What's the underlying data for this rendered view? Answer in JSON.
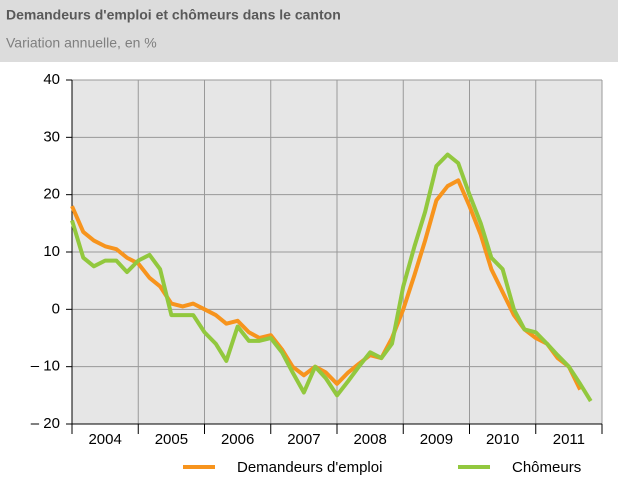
{
  "chart_data": {
    "type": "line",
    "title": "Demandeurs d'emploi et chômeurs dans le canton",
    "subtitle": "Variation annuelle, en %",
    "xlim": [
      2004,
      2012
    ],
    "xticks": [
      {
        "value": 2004.5,
        "label": "2004"
      },
      {
        "value": 2005.5,
        "label": "2005"
      },
      {
        "value": 2006.5,
        "label": "2006"
      },
      {
        "value": 2007.5,
        "label": "2007"
      },
      {
        "value": 2008.5,
        "label": "2008"
      },
      {
        "value": 2009.5,
        "label": "2009"
      },
      {
        "value": 2010.5,
        "label": "2010"
      },
      {
        "value": 2011.5,
        "label": "2011"
      }
    ],
    "xgrid": [
      2004,
      2005,
      2006,
      2007,
      2008,
      2009,
      2010,
      2011,
      2012
    ],
    "ylim": [
      -20,
      40
    ],
    "yticks": [
      {
        "value": -20,
        "label": "– 20"
      },
      {
        "value": -10,
        "label": "– 10"
      },
      0,
      10,
      20,
      30,
      40
    ],
    "grid": true,
    "legend": "bottom",
    "series": [
      {
        "name": "Demandeurs d'emploi",
        "color": "#f7941d",
        "x": [
          2004,
          2004.17,
          2004.33,
          2004.5,
          2004.67,
          2004.83,
          2005,
          2005.17,
          2005.33,
          2005.5,
          2005.67,
          2005.83,
          2006,
          2006.17,
          2006.33,
          2006.5,
          2006.67,
          2006.83,
          2007,
          2007.17,
          2007.33,
          2007.5,
          2007.67,
          2007.83,
          2008,
          2008.17,
          2008.33,
          2008.5,
          2008.67,
          2008.83,
          2009,
          2009.17,
          2009.33,
          2009.5,
          2009.67,
          2009.83,
          2010,
          2010.17,
          2010.33,
          2010.5,
          2010.67,
          2010.83,
          2011,
          2011.17,
          2011.33,
          2011.5,
          2011.67
        ],
        "values": [
          18,
          13.5,
          12,
          11,
          10.5,
          9,
          8,
          5.5,
          4,
          1,
          0.5,
          1,
          0,
          -1,
          -2.5,
          -2,
          -4,
          -5,
          -4.5,
          -7,
          -10,
          -11.5,
          -10,
          -11,
          -13,
          -11,
          -9.5,
          -8,
          -8.5,
          -5,
          0,
          6,
          12,
          19,
          21.5,
          22.5,
          18,
          13,
          7,
          3,
          -1,
          -3.5,
          -5,
          -6,
          -8.5,
          -10,
          -14
        ]
      },
      {
        "name": "Chômeurs",
        "color": "#92c83e",
        "x": [
          2004,
          2004.17,
          2004.33,
          2004.5,
          2004.67,
          2004.83,
          2005,
          2005.17,
          2005.33,
          2005.5,
          2005.67,
          2005.83,
          2006,
          2006.17,
          2006.33,
          2006.5,
          2006.67,
          2006.83,
          2007,
          2007.17,
          2007.33,
          2007.5,
          2007.67,
          2007.83,
          2008,
          2008.17,
          2008.33,
          2008.5,
          2008.67,
          2008.83,
          2009,
          2009.17,
          2009.33,
          2009.5,
          2009.67,
          2009.83,
          2010,
          2010.17,
          2010.33,
          2010.5,
          2010.67,
          2010.83,
          2011,
          2011.17,
          2011.33,
          2011.5,
          2011.67,
          2011.83
        ],
        "values": [
          15.5,
          9,
          7.5,
          8.5,
          8.5,
          6.5,
          8.5,
          9.5,
          7,
          -1,
          -1,
          -1,
          -4,
          -6,
          -9,
          -3,
          -5.5,
          -5.5,
          -5,
          -7.5,
          -11,
          -14.5,
          -10,
          -12,
          -15,
          -12.5,
          -10,
          -7.5,
          -8.5,
          -6,
          4,
          11,
          17,
          25,
          27,
          25.5,
          20,
          15,
          9,
          7,
          0,
          -3.5,
          -4,
          -6,
          -8,
          -10,
          -13,
          -16
        ]
      }
    ]
  }
}
